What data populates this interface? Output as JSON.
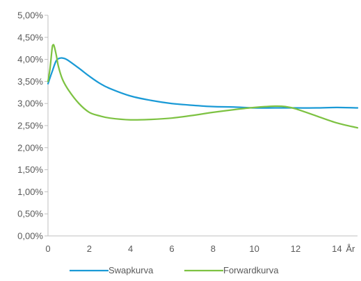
{
  "chart_data": {
    "type": "line",
    "title": "",
    "xlabel": "",
    "ylabel": "",
    "x_unit_label": "År",
    "xlim": [
      0,
      15
    ],
    "ylim": [
      0,
      5
    ],
    "x_ticks": [
      0,
      2,
      4,
      6,
      8,
      10,
      12,
      14
    ],
    "x_tick_labels": [
      "0",
      "2",
      "4",
      "6",
      "8",
      "10",
      "12",
      "14"
    ],
    "y_ticks": [
      0,
      0.5,
      1,
      1.5,
      2,
      2.5,
      3,
      3.5,
      4,
      4.5,
      5
    ],
    "y_tick_labels": [
      "0,00%",
      "0,50%",
      "1,00%",
      "1,50%",
      "2,00%",
      "2,50%",
      "3,00%",
      "3,50%",
      "4,00%",
      "4,50%",
      "5,00%"
    ],
    "grid": false,
    "legend_position": "bottom",
    "series": [
      {
        "name": "Swapkurva",
        "color": "#1a9ad6",
        "x": [
          0,
          0.2,
          0.4,
          0.6,
          0.8,
          1,
          1.5,
          2,
          2.5,
          3,
          4,
          5,
          6,
          7,
          8,
          9,
          10,
          11,
          12,
          13,
          14,
          15
        ],
        "y": [
          3.45,
          3.72,
          3.97,
          4.03,
          4.02,
          3.97,
          3.8,
          3.62,
          3.46,
          3.34,
          3.17,
          3.07,
          3.0,
          2.96,
          2.93,
          2.92,
          2.9,
          2.9,
          2.9,
          2.9,
          2.91,
          2.9
        ]
      },
      {
        "name": "Forwardkurva",
        "color": "#7dc242",
        "x": [
          0,
          0.1,
          0.2,
          0.25,
          0.3,
          0.4,
          0.5,
          0.7,
          1,
          1.5,
          2,
          2.5,
          3,
          4,
          5,
          6,
          7,
          8,
          9,
          10,
          11,
          11.5,
          12,
          13,
          14,
          15
        ],
        "y": [
          3.5,
          3.8,
          4.25,
          4.33,
          4.3,
          4.1,
          3.85,
          3.55,
          3.3,
          3.0,
          2.8,
          2.72,
          2.67,
          2.63,
          2.64,
          2.67,
          2.73,
          2.8,
          2.86,
          2.91,
          2.94,
          2.93,
          2.88,
          2.72,
          2.56,
          2.45
        ]
      }
    ]
  }
}
